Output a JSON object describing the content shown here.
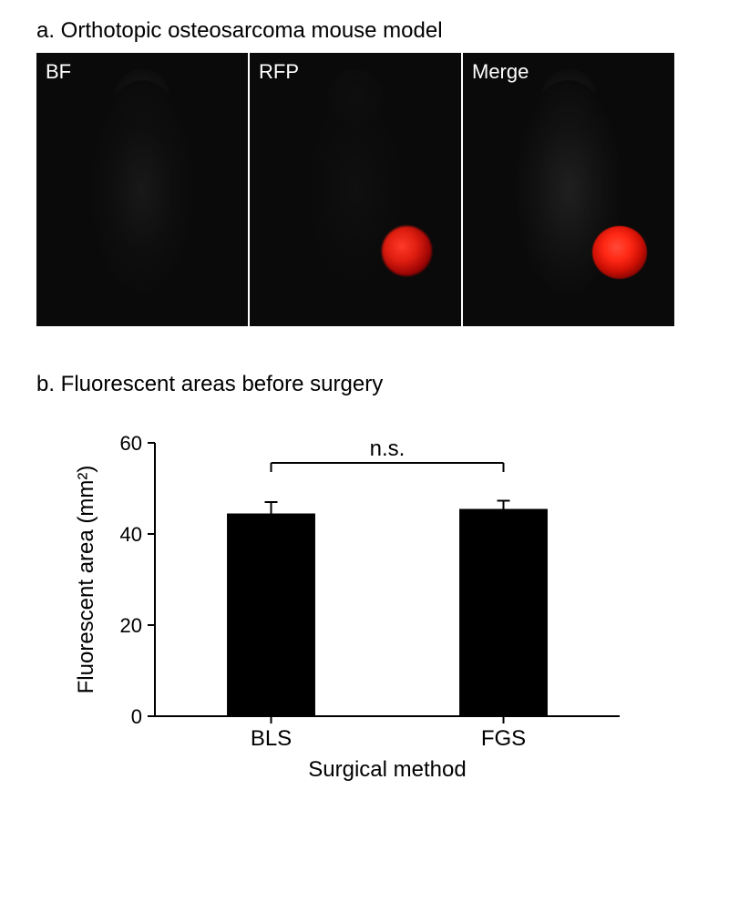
{
  "panel_a": {
    "title": "a. Orthotopic osteosarcoma mouse model",
    "images": [
      {
        "label": "BF"
      },
      {
        "label": "RFP"
      },
      {
        "label": "Merge"
      }
    ],
    "tumor_color_core": "#ff3020",
    "tumor_color_mid": "#d01005",
    "background_color": "#0a0a0a",
    "label_color": "#ffffff",
    "label_fontsize": 22
  },
  "panel_b": {
    "title": "b. Fluorescent areas before surgery",
    "chart": {
      "type": "bar",
      "categories": [
        "BLS",
        "FGS"
      ],
      "values": [
        44.5,
        45.5
      ],
      "errors": [
        2.5,
        1.8
      ],
      "bar_color": "#000000",
      "error_color": "#000000",
      "background_color": "#ffffff",
      "axis_color": "#000000",
      "ylabel": "Fluorescent area (mm²)",
      "xlabel": "Surgical method",
      "ylim": [
        0,
        60
      ],
      "ytick_step": 20,
      "yticks": [
        0,
        20,
        40,
        60
      ],
      "bar_width_ratio": 0.38,
      "significance_label": "n.s.",
      "title_fontsize": 24,
      "label_fontsize": 24,
      "tick_fontsize": 22,
      "axis_linewidth": 2,
      "error_linewidth": 2,
      "error_cap_width": 14
    }
  }
}
